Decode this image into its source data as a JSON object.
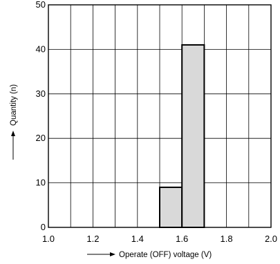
{
  "chart_data": {
    "type": "bar",
    "title": "",
    "xlabel": "Operate (OFF) voltage (V)",
    "ylabel": "Quantity (n)",
    "xlim": [
      1.0,
      2.0
    ],
    "ylim": [
      0,
      50
    ],
    "x_ticks": [
      "1.0",
      "1.2",
      "1.4",
      "1.6",
      "1.8",
      "2.0"
    ],
    "y_ticks": [
      "0",
      "10",
      "20",
      "30",
      "40",
      "50"
    ],
    "x_grid_step": 0.1,
    "y_grid_step": 10,
    "grid": true,
    "bar_color": "#d9d9d9",
    "bins": [
      {
        "x0": 1.5,
        "x1": 1.6,
        "value": 9
      },
      {
        "x0": 1.6,
        "x1": 1.7,
        "value": 41
      }
    ]
  }
}
